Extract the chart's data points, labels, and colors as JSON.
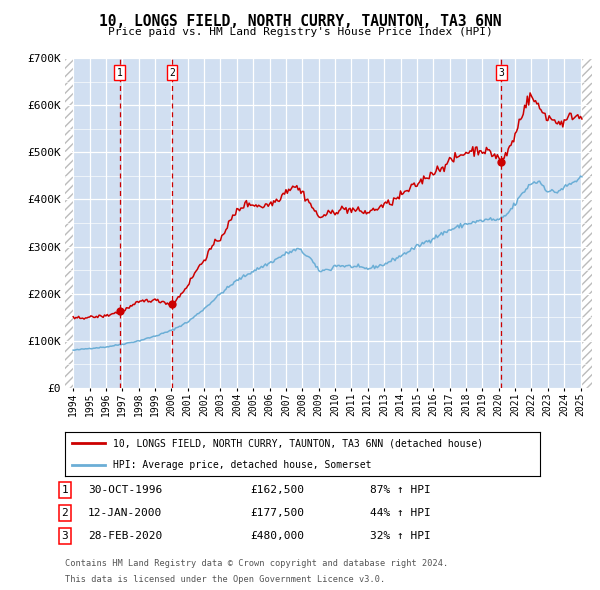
{
  "title": "10, LONGS FIELD, NORTH CURRY, TAUNTON, TA3 6NN",
  "subtitle": "Price paid vs. HM Land Registry's House Price Index (HPI)",
  "legend_entry1": "10, LONGS FIELD, NORTH CURRY, TAUNTON, TA3 6NN (detached house)",
  "legend_entry2": "HPI: Average price, detached house, Somerset",
  "footnote1": "Contains HM Land Registry data © Crown copyright and database right 2024.",
  "footnote2": "This data is licensed under the Open Government Licence v3.0.",
  "transactions": [
    {
      "num": 1,
      "date": "30-OCT-1996",
      "price": 162500,
      "pct": "87%",
      "dir": "↑",
      "year": 1996.83
    },
    {
      "num": 2,
      "date": "12-JAN-2000",
      "price": 177500,
      "pct": "44%",
      "dir": "↑",
      "year": 2000.04
    },
    {
      "num": 3,
      "date": "28-FEB-2020",
      "price": 480000,
      "pct": "32%",
      "dir": "↑",
      "year": 2020.16
    }
  ],
  "ylim": [
    0,
    700000
  ],
  "yticks": [
    0,
    100000,
    200000,
    300000,
    400000,
    500000,
    600000,
    700000
  ],
  "ytick_labels": [
    "£0",
    "£100K",
    "£200K",
    "£300K",
    "£400K",
    "£500K",
    "£600K",
    "£700K"
  ],
  "hpi_color": "#6baed6",
  "price_color": "#cc0000",
  "background_color": "#ffffff",
  "plot_bg_color": "#dce9f5",
  "grid_color": "#ffffff",
  "dashed_line_color": "#cc0000",
  "shade_color": "#c8d8ee",
  "xlim_left": 1993.5,
  "xlim_right": 2025.7,
  "hatch_left_end": 1994.0,
  "hatch_right_start": 2025.08
}
